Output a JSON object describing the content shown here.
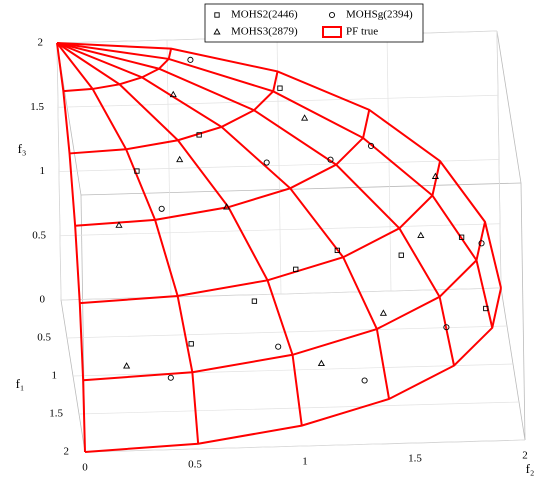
{
  "chart_data": {
    "type": "scatter3d",
    "xlabel": "f₂",
    "ylabel": "f₁",
    "zlabel": "f₃",
    "f1lim": [
      0,
      2
    ],
    "f2lim": [
      0,
      2
    ],
    "f3lim": [
      0,
      2
    ],
    "f1ticks": [
      0,
      0.5,
      1,
      1.5,
      2
    ],
    "f2ticks": [
      0,
      0.5,
      1,
      1.5,
      2
    ],
    "f3ticks": [
      0.5,
      1,
      1.5,
      2
    ],
    "grid": true,
    "series": [
      {
        "name": "MOHS2(2446)",
        "marker": "square",
        "color": "#000000",
        "f1": [
          1.2,
          0.5,
          1.6,
          0.8,
          1.0,
          1.8,
          0.2,
          1.4,
          0.6,
          1.1
        ],
        "f2": [
          1.2,
          1.8,
          0.8,
          0.6,
          1.5,
          0.5,
          1.0,
          1.0,
          1.9,
          0.3
        ],
        "f3": [
          1.04,
          0.7,
          0.9,
          1.73,
          0.87,
          0.7,
          1.72,
          1.02,
          0.2,
          1.64
        ]
      },
      {
        "name": "MOHSg(2394)",
        "marker": "circle",
        "color": "#000000",
        "f1": [
          0.4,
          1.5,
          0.9,
          1.3,
          0.3,
          1.9,
          0.7,
          1.0,
          1.7,
          0.1
        ],
        "f2": [
          1.4,
          1.3,
          0.9,
          0.4,
          1.9,
          0.4,
          1.2,
          1.7,
          0.9,
          0.6
        ],
        "f3": [
          1.37,
          0.2,
          1.56,
          1.46,
          0.53,
          0.5,
          1.45,
          0.3,
          0.6,
          1.9
        ]
      },
      {
        "name": "MOHS3(2879)",
        "marker": "triangle",
        "color": "#000000",
        "f1": [
          1.2,
          0.5,
          1.6,
          0.8,
          1.9,
          0.4,
          1.4,
          0.2,
          1.0,
          1.3
        ],
        "f2": [
          0.7,
          0.5,
          1.1,
          1.6,
          0.2,
          1.1,
          0.2,
          1.7,
          0.5,
          1.4
        ],
        "f3": [
          1.4,
          1.87,
          0.4,
          0.9,
          0.6,
          1.6,
          1.4,
          1.0,
          1.66,
          0.6
        ]
      },
      {
        "name": "PF true",
        "marker": "surface",
        "color": "#ff0000",
        "f1": [
          [
            0,
            0,
            0,
            0,
            0,
            0,
            0
          ],
          [
            0.518,
            0.5,
            0.449,
            0.366,
            0.259,
            0.134,
            0
          ],
          [
            1,
            0.966,
            0.866,
            0.707,
            0.5,
            0.259,
            0
          ],
          [
            1.414,
            1.366,
            1.225,
            1,
            0.707,
            0.366,
            0
          ],
          [
            1.732,
            1.673,
            1.5,
            1.225,
            0.866,
            0.448,
            0
          ],
          [
            1.932,
            1.866,
            1.673,
            1.366,
            0.966,
            0.5,
            0
          ],
          [
            2,
            1.932,
            1.732,
            1.414,
            1,
            0.518,
            0
          ]
        ],
        "f2": [
          [
            0,
            0,
            0,
            0,
            0,
            0,
            0
          ],
          [
            0,
            0.134,
            0.259,
            0.366,
            0.449,
            0.5,
            0.518
          ],
          [
            0,
            0.259,
            0.5,
            0.707,
            0.866,
            0.966,
            1
          ],
          [
            0,
            0.366,
            0.707,
            1,
            1.225,
            1.366,
            1.414
          ],
          [
            0,
            0.448,
            0.866,
            1.225,
            1.5,
            1.673,
            1.732
          ],
          [
            0,
            0.5,
            0.966,
            1.366,
            1.673,
            1.866,
            1.932
          ],
          [
            0,
            0.518,
            1,
            1.414,
            1.732,
            1.932,
            2
          ]
        ],
        "f3": [
          [
            2,
            2,
            2,
            2,
            2,
            2,
            2
          ],
          [
            1.932,
            1.932,
            1.932,
            1.932,
            1.932,
            1.932,
            1.932
          ],
          [
            1.732,
            1.732,
            1.732,
            1.732,
            1.732,
            1.732,
            1.732
          ],
          [
            1.414,
            1.414,
            1.414,
            1.414,
            1.414,
            1.414,
            1.414
          ],
          [
            1,
            1,
            1,
            1,
            1,
            1,
            1
          ],
          [
            0.518,
            0.518,
            0.518,
            0.518,
            0.518,
            0.518,
            0.518
          ],
          [
            0,
            0,
            0,
            0,
            0,
            0,
            0
          ]
        ]
      }
    ]
  }
}
